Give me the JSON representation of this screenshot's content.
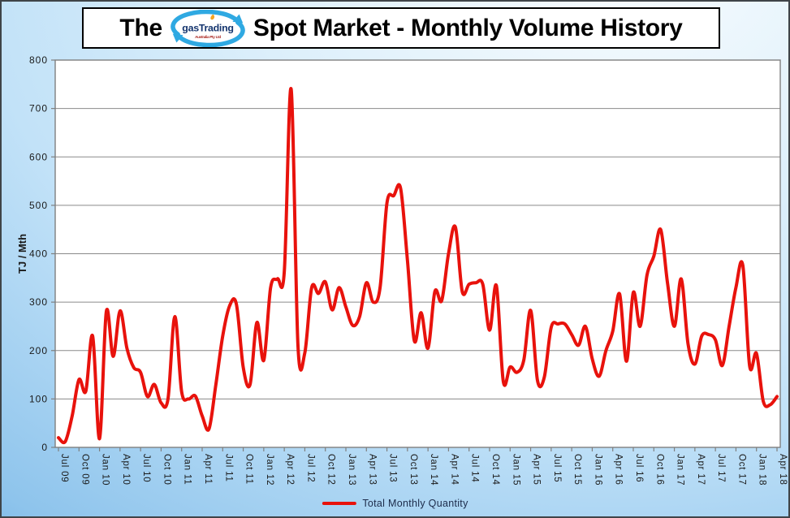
{
  "window": {
    "kind": "spot-market-volume-chart"
  },
  "title": {
    "prefix": "The",
    "suffix": "Spot Market - Monthly Volume History"
  },
  "logo": {
    "name": "gasTrading",
    "subtext": "Australia Pty Ltd"
  },
  "legend": {
    "label": "Total Monthly Quantity"
  },
  "colors": {
    "series": "#e8120c",
    "plot_bg": "#ffffff",
    "grid": "#8a8a8a",
    "axis": "#7f7f7f",
    "tick_text": "#1a1a1a",
    "legend_text": "#1c2b4a",
    "bg_light": "#dceffb",
    "bg_dark": "#2f88d0"
  },
  "chart_data": {
    "type": "line",
    "title": "The gasTrading Spot Market - Monthly Volume History",
    "xlabel": "",
    "ylabel": "TJ / Mth",
    "ylim": [
      0,
      800
    ],
    "y_tick_step": 100,
    "y_ticks": [
      0,
      100,
      200,
      300,
      400,
      500,
      600,
      700,
      800
    ],
    "grid": "horizontal",
    "legend_position": "bottom",
    "x_start": "Jul 2009",
    "x_end": "Apr 2018",
    "x_interval": "monthly",
    "x_tick_every_months": 3,
    "x_tick_labels": [
      "Jul 09",
      "Oct 09",
      "Jan 10",
      "Apr 10",
      "Jul 10",
      "Oct 10",
      "Jan 11",
      "Apr 11",
      "Jul 11",
      "Oct 11",
      "Jan 12",
      "Apr 12",
      "Jul 12",
      "Oct 12",
      "Jan 13",
      "Apr 13",
      "Jul 13",
      "Oct 13",
      "Jan 14",
      "Apr 14",
      "Jul 14",
      "Oct 14",
      "Jan 15",
      "Apr 15",
      "Jul 15",
      "Oct 15",
      "Jan 16",
      "Apr 16",
      "Jul 16",
      "Oct 16",
      "Jan 17",
      "Apr 17",
      "Jul 17",
      "Oct 17",
      "Jan 18",
      "Apr 18"
    ],
    "series": [
      {
        "name": "Total Monthly Quantity",
        "color": "#e8120c",
        "values": [
          20,
          12,
          65,
          140,
          116,
          230,
          18,
          281,
          188,
          282,
          205,
          165,
          155,
          105,
          130,
          92,
          100,
          270,
          115,
          100,
          106,
          65,
          38,
          130,
          230,
          292,
          296,
          165,
          130,
          258,
          180,
          330,
          348,
          362,
          740,
          210,
          195,
          330,
          318,
          342,
          284,
          330,
          290,
          252,
          270,
          340,
          300,
          330,
          505,
          520,
          535,
          385,
          220,
          278,
          205,
          322,
          303,
          400,
          455,
          322,
          337,
          340,
          337,
          242,
          334,
          136,
          166,
          155,
          180,
          283,
          138,
          145,
          248,
          255,
          255,
          233,
          211,
          250,
          183,
          147,
          200,
          240,
          317,
          178,
          320,
          250,
          356,
          395,
          450,
          340,
          250,
          348,
          214,
          172,
          230,
          233,
          222,
          169,
          250,
          330,
          376,
          168,
          194,
          95,
          88,
          105
        ]
      }
    ]
  }
}
